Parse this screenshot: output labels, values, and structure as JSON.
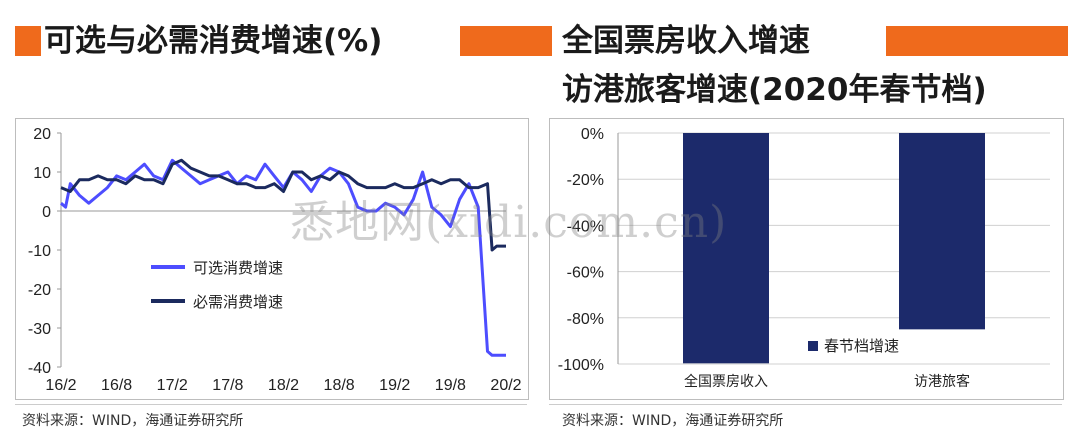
{
  "left": {
    "title": "可选与必需消费增速(%)",
    "source": "资料来源：WIND，海通证券研究所"
  },
  "right": {
    "title_line1": "全国票房收入增速",
    "title_line2": "访港旅客增速(2020年春节档)",
    "source": "资料来源：WIND，海通证券研究所"
  },
  "watermark": "悉地网(xidi.com.cn)",
  "colors": {
    "accent": "#ef6a1c",
    "series_optional": "#4d4dff",
    "series_necessary": "#1b2a5e",
    "bar": "#1c2a6b"
  },
  "chart_data": [
    {
      "type": "line",
      "ylim": [
        -40,
        20
      ],
      "yticks": [
        20,
        10,
        0,
        -10,
        -20,
        -30,
        -40
      ],
      "xlim": [
        0,
        48
      ],
      "xticks": [
        {
          "x": 0,
          "label": "16/2"
        },
        {
          "x": 6,
          "label": "16/8"
        },
        {
          "x": 12,
          "label": "17/2"
        },
        {
          "x": 18,
          "label": "17/8"
        },
        {
          "x": 24,
          "label": "18/2"
        },
        {
          "x": 30,
          "label": "18/8"
        },
        {
          "x": 36,
          "label": "19/2"
        },
        {
          "x": 42,
          "label": "19/8"
        },
        {
          "x": 48,
          "label": "20/2"
        }
      ],
      "legend_position": "lower-middle",
      "series": [
        {
          "name": "可选消费增速",
          "x": [
            0,
            0.5,
            1,
            2,
            3,
            4,
            5,
            6,
            7,
            8,
            9,
            10,
            11,
            12,
            13,
            14,
            15,
            16,
            17,
            18,
            19,
            20,
            21,
            22,
            23,
            24,
            25,
            26,
            27,
            28,
            29,
            30,
            31,
            32,
            33,
            34,
            35,
            36,
            37,
            38,
            39,
            40,
            41,
            42,
            43,
            44,
            45,
            46,
            46.5,
            47,
            48
          ],
          "y": [
            2,
            1,
            7,
            4,
            2,
            4,
            6,
            9,
            8,
            10,
            12,
            9,
            8,
            13,
            11,
            9,
            7,
            8,
            9,
            10,
            7,
            9,
            8,
            12,
            9,
            6,
            10,
            8,
            5,
            9,
            11,
            10,
            7,
            1,
            0,
            0,
            2,
            1,
            -1,
            3,
            10,
            1,
            -1,
            -4,
            3,
            7,
            1,
            -36,
            -37,
            -37,
            -37
          ]
        },
        {
          "name": "必需消费增速",
          "x": [
            0,
            1,
            2,
            3,
            4,
            5,
            6,
            7,
            8,
            9,
            10,
            11,
            12,
            13,
            14,
            15,
            16,
            17,
            18,
            19,
            20,
            21,
            22,
            23,
            24,
            25,
            26,
            27,
            28,
            29,
            30,
            31,
            32,
            33,
            34,
            35,
            36,
            37,
            38,
            39,
            40,
            41,
            42,
            43,
            44,
            45,
            46,
            46.5,
            47,
            48
          ],
          "y": [
            6,
            5,
            8,
            8,
            9,
            8,
            8,
            7,
            9,
            8,
            8,
            7,
            12,
            13,
            11,
            10,
            9,
            9,
            8,
            7,
            7,
            6,
            6,
            7,
            5,
            10,
            10,
            8,
            9,
            8,
            10,
            9,
            7,
            6,
            6,
            6,
            7,
            6,
            6,
            7,
            8,
            7,
            8,
            8,
            6,
            6,
            7,
            -10,
            -9,
            -9
          ]
        }
      ]
    },
    {
      "type": "bar",
      "categories": [
        "全国票房收入",
        "访港旅客"
      ],
      "series": [
        {
          "name": "春节档增速",
          "values": [
            -99.7,
            -85
          ]
        }
      ],
      "ylim": [
        -100,
        0
      ],
      "yticks": [
        "0%",
        "-20%",
        "-40%",
        "-60%",
        "-80%",
        "-100%"
      ],
      "legend_position": "lower-middle"
    }
  ]
}
